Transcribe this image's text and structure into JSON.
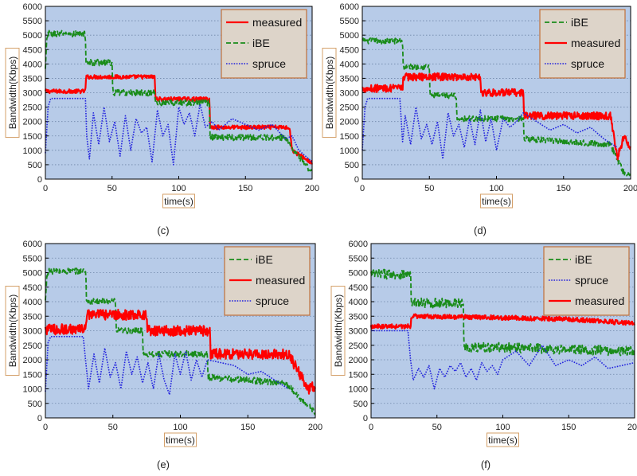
{
  "colors": {
    "plot_bg": "#b7cbe8",
    "grid": "#6f86a8",
    "label_border": "#d4a06a",
    "measured": "#ff0000",
    "ibe": "#1a8c1a",
    "spruce": "#2222dd"
  },
  "chart_data": [
    {
      "panel": "c",
      "caption": "(c)",
      "type": "line",
      "xlabel": "time(s)",
      "ylabel": "Bandwidth(Kbps)",
      "xlim": [
        0,
        200
      ],
      "ylim": [
        0,
        6000
      ],
      "xticks": [
        0,
        50,
        100,
        150,
        200
      ],
      "yticks": [
        0,
        500,
        1000,
        1500,
        2000,
        2500,
        3000,
        3500,
        4000,
        4500,
        5000,
        5500,
        6000
      ],
      "grid": "y-dotted",
      "legend": [
        "measured",
        "iBE",
        "spruce"
      ],
      "legend_position": "top-right",
      "series": [
        {
          "name": "measured",
          "style": "solid",
          "width": 2.2,
          "noise": 70,
          "x": [
            0,
            30,
            30.5,
            82,
            82.5,
            123,
            123.5,
            183,
            185,
            200
          ],
          "y": [
            3050,
            3050,
            3550,
            3550,
            2780,
            2780,
            1800,
            1800,
            1000,
            550
          ]
        },
        {
          "name": "iBE",
          "style": "dashed",
          "width": 1.8,
          "noise": 110,
          "x": [
            0,
            1,
            2,
            30,
            30.5,
            50,
            50.5,
            82,
            82.5,
            123,
            123.5,
            180,
            190,
            200
          ],
          "y": [
            3800,
            4800,
            5050,
            5050,
            4050,
            4050,
            3000,
            3000,
            2650,
            2650,
            1450,
            1450,
            800,
            200
          ]
        },
        {
          "name": "spruce",
          "style": "dotted",
          "width": 1.6,
          "noise": 0,
          "x": [
            0,
            2,
            4,
            30,
            31,
            33,
            36,
            40,
            44,
            48,
            52,
            56,
            60,
            64,
            68,
            72,
            76,
            80,
            84,
            88,
            92,
            96,
            100,
            104,
            108,
            112,
            116,
            120,
            125,
            130,
            140,
            150,
            160,
            170,
            180,
            185,
            190,
            200
          ],
          "y": [
            900,
            2500,
            2800,
            2800,
            1500,
            700,
            2300,
            1200,
            2500,
            1300,
            2000,
            800,
            2200,
            1000,
            2100,
            1600,
            1800,
            600,
            2400,
            1500,
            1900,
            500,
            2500,
            1900,
            2300,
            1500,
            2600,
            1800,
            2000,
            1700,
            2100,
            1900,
            1700,
            1900,
            1400,
            1500,
            1000,
            600
          ]
        }
      ]
    },
    {
      "panel": "d",
      "caption": "(d)",
      "type": "line",
      "xlabel": "time(s)",
      "ylabel": "Bandwidth(Kbps)",
      "xlim": [
        0,
        200
      ],
      "ylim": [
        0,
        6000
      ],
      "xticks": [
        0,
        50,
        100,
        150,
        200
      ],
      "yticks": [
        0,
        500,
        1000,
        1500,
        2000,
        2500,
        3000,
        3500,
        4000,
        4500,
        5000,
        5500,
        6000
      ],
      "grid": "y-dotted",
      "legend": [
        "iBE",
        "measured",
        "spruce"
      ],
      "legend_position": "top-right",
      "series": [
        {
          "name": "iBE",
          "style": "dashed",
          "width": 1.8,
          "noise": 100,
          "x": [
            0,
            30,
            30.5,
            50,
            50.5,
            70,
            70.5,
            120,
            120.5,
            185,
            195,
            200
          ],
          "y": [
            4800,
            4800,
            3900,
            3900,
            2900,
            2900,
            2100,
            2100,
            1400,
            1200,
            200,
            150
          ]
        },
        {
          "name": "measured",
          "style": "solid",
          "width": 2.2,
          "noise": 130,
          "x": [
            0,
            30,
            30.5,
            88,
            88.5,
            120,
            120.5,
            185,
            190,
            195,
            200
          ],
          "y": [
            3150,
            3150,
            3550,
            3550,
            3000,
            3000,
            2200,
            2200,
            700,
            1500,
            1000
          ]
        },
        {
          "name": "spruce",
          "style": "dotted",
          "width": 1.6,
          "noise": 0,
          "x": [
            0,
            2,
            4,
            28,
            30,
            32,
            36,
            40,
            44,
            48,
            52,
            56,
            60,
            64,
            68,
            72,
            76,
            80,
            84,
            88,
            92,
            96,
            100,
            105,
            110,
            115,
            120,
            130,
            140,
            150,
            160,
            170,
            180,
            190
          ],
          "y": [
            1000,
            2500,
            2800,
            2800,
            1300,
            2200,
            1200,
            2500,
            1400,
            1900,
            1200,
            2000,
            700,
            2300,
            1500,
            1900,
            1100,
            2100,
            1200,
            2400,
            1300,
            2100,
            1000,
            2100,
            1800,
            2000,
            2300,
            2000,
            1700,
            1900,
            1600,
            1800,
            1400,
            1100
          ]
        }
      ]
    },
    {
      "panel": "e",
      "caption": "(e)",
      "type": "line",
      "xlabel": "time(s)",
      "ylabel": "Bandwidth(Kbps)",
      "xlim": [
        0,
        200
      ],
      "ylim": [
        0,
        6000
      ],
      "xticks": [
        0,
        50,
        100,
        150,
        200
      ],
      "yticks": [
        0,
        500,
        1000,
        1500,
        2000,
        2500,
        3000,
        3500,
        4000,
        4500,
        5000,
        5500,
        6000
      ],
      "grid": "y-dotted",
      "legend": [
        "iBE",
        "measured",
        "spruce"
      ],
      "legend_position": "top-right",
      "series": [
        {
          "name": "iBE",
          "style": "dashed",
          "width": 1.8,
          "noise": 110,
          "x": [
            0,
            1,
            2,
            30,
            30.5,
            52,
            52.5,
            72,
            72.5,
            120,
            120.5,
            178,
            190,
            200
          ],
          "y": [
            4000,
            4800,
            5050,
            5050,
            4000,
            4000,
            3000,
            3000,
            2200,
            2200,
            1400,
            1200,
            600,
            200
          ]
        },
        {
          "name": "measured",
          "style": "solid",
          "width": 2.2,
          "noise": 180,
          "x": [
            0,
            30,
            30.5,
            75,
            75.5,
            122,
            122.5,
            180,
            195,
            200
          ],
          "y": [
            3050,
            3050,
            3550,
            3550,
            3000,
            3000,
            2200,
            2200,
            1000,
            1100
          ]
        },
        {
          "name": "spruce",
          "style": "dotted",
          "width": 1.6,
          "noise": 0,
          "x": [
            0,
            2,
            4,
            28,
            30,
            32,
            36,
            40,
            44,
            48,
            52,
            56,
            60,
            64,
            68,
            72,
            76,
            80,
            84,
            88,
            92,
            96,
            100,
            104,
            108,
            112,
            116,
            120,
            130,
            140,
            150,
            160,
            170,
            180
          ],
          "y": [
            900,
            2600,
            2800,
            2800,
            1900,
            1000,
            2200,
            1200,
            2400,
            1400,
            1900,
            1000,
            2300,
            1500,
            2100,
            1200,
            1900,
            1000,
            2200,
            1300,
            800,
            2200,
            1500,
            2300,
            1300,
            2000,
            1400,
            2000,
            1900,
            1800,
            1500,
            1600,
            1300,
            1000
          ]
        }
      ]
    },
    {
      "panel": "f",
      "caption": "(f)",
      "type": "line",
      "xlabel": "time(s)",
      "ylabel": "Bandwidth(Kbps)",
      "xlim": [
        0,
        200
      ],
      "ylim": [
        0,
        6000
      ],
      "xticks": [
        0,
        50,
        100,
        150,
        200
      ],
      "yticks": [
        0,
        500,
        1000,
        1500,
        2000,
        2500,
        3000,
        3500,
        4000,
        4500,
        5000,
        5500,
        6000
      ],
      "grid": "y-dotted",
      "legend": [
        "iBE",
        "spruce",
        "measured"
      ],
      "legend_position": "top-right",
      "series": [
        {
          "name": "iBE",
          "style": "dashed",
          "width": 1.8,
          "noise": 170,
          "x": [
            0,
            30,
            30.5,
            70,
            70.5,
            200
          ],
          "y": [
            4950,
            4950,
            3950,
            3950,
            2450,
            2300
          ]
        },
        {
          "name": "spruce",
          "style": "dotted",
          "width": 1.6,
          "noise": 0,
          "x": [
            0,
            28,
            30,
            32,
            36,
            40,
            44,
            48,
            52,
            56,
            60,
            64,
            68,
            72,
            76,
            80,
            84,
            88,
            92,
            96,
            100,
            110,
            120,
            130,
            140,
            150,
            160,
            170,
            180,
            190,
            200
          ],
          "y": [
            3000,
            3000,
            2000,
            1300,
            1700,
            1400,
            1800,
            1000,
            1700,
            1400,
            1800,
            1600,
            1900,
            1400,
            1700,
            1300,
            1900,
            1600,
            1800,
            1500,
            2000,
            2300,
            1800,
            2500,
            1800,
            2000,
            1800,
            2100,
            1700,
            1800,
            1900
          ]
        },
        {
          "name": "measured",
          "style": "solid",
          "width": 2.2,
          "noise": 80,
          "x": [
            0,
            30,
            30.5,
            100,
            150,
            200
          ],
          "y": [
            3150,
            3150,
            3500,
            3450,
            3400,
            3250
          ]
        }
      ]
    }
  ]
}
